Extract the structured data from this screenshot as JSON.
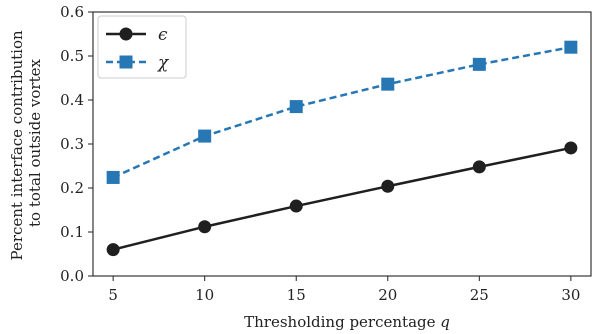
{
  "chart_data": {
    "type": "line",
    "title": "",
    "xlabel": "Thresholding percentage q",
    "ylabel": [
      "Percent interface contribution",
      "to total outside vortex"
    ],
    "x": [
      5,
      10,
      15,
      20,
      25,
      30
    ],
    "xticks": [
      "5",
      "10",
      "15",
      "20",
      "25",
      "30"
    ],
    "yticks": [
      "0.0",
      "0.1",
      "0.2",
      "0.3",
      "0.4",
      "0.5",
      "0.6"
    ],
    "xlim": [
      3.9,
      31.1
    ],
    "ylim": [
      0.0,
      0.6
    ],
    "grid": false,
    "legend_position": "top-left",
    "series": [
      {
        "name": "ϵ",
        "values": [
          0.06,
          0.112,
          0.159,
          0.204,
          0.248,
          0.291
        ],
        "color": "#1f1f1f",
        "line_style": "solid",
        "marker": "circle"
      },
      {
        "name": "χ",
        "values": [
          0.224,
          0.318,
          0.385,
          0.436,
          0.481,
          0.52
        ],
        "color": "#2677b4",
        "line_style": "dashed",
        "marker": "square"
      }
    ]
  }
}
